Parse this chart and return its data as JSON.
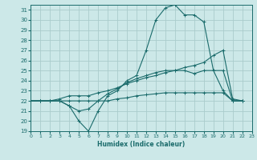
{
  "xlabel": "Humidex (Indice chaleur)",
  "background_color": "#cce8e8",
  "grid_color": "#aacccc",
  "line_color": "#1a6b6b",
  "xlim": [
    0,
    23
  ],
  "ylim": [
    19,
    31.5
  ],
  "xticks": [
    0,
    1,
    2,
    3,
    4,
    5,
    6,
    7,
    8,
    9,
    10,
    11,
    12,
    13,
    14,
    15,
    16,
    17,
    18,
    19,
    20,
    21,
    22,
    23
  ],
  "yticks": [
    19,
    20,
    21,
    22,
    23,
    24,
    25,
    26,
    27,
    28,
    29,
    30,
    31
  ],
  "series": [
    [
      22,
      22,
      22,
      22,
      21.5,
      20,
      19,
      21,
      22.5,
      23,
      24,
      24.5,
      27,
      30,
      31.2,
      31.5,
      30.5,
      30.5,
      29.8,
      25,
      23,
      22,
      22
    ],
    [
      22,
      22,
      22,
      22,
      21.5,
      21,
      21.2,
      22,
      22.7,
      23.2,
      23.8,
      24.2,
      24.5,
      24.8,
      25,
      25,
      25,
      24.7,
      25,
      25,
      25,
      22,
      22
    ],
    [
      22,
      22,
      22,
      22.2,
      22.5,
      22.5,
      22.5,
      22.8,
      23.0,
      23.3,
      23.7,
      24.0,
      24.3,
      24.5,
      24.8,
      25.0,
      25.3,
      25.5,
      25.8,
      26.5,
      27,
      22.2,
      22
    ],
    [
      22,
      22,
      22,
      22,
      22,
      22,
      22,
      22,
      22,
      22.2,
      22.3,
      22.5,
      22.6,
      22.7,
      22.8,
      22.8,
      22.8,
      22.8,
      22.8,
      22.8,
      22.8,
      22,
      22
    ]
  ]
}
